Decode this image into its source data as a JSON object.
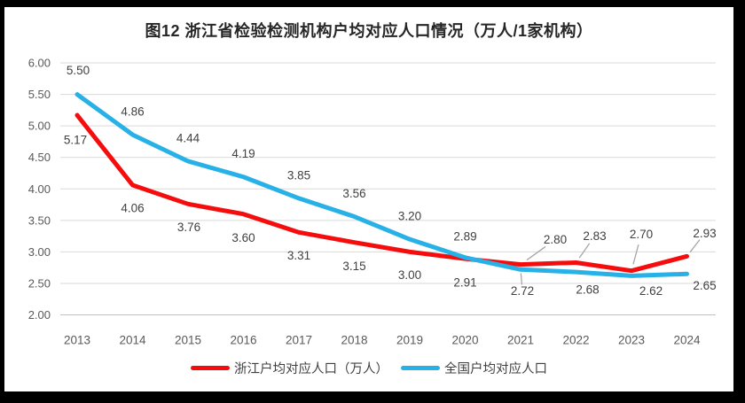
{
  "title": "图12 浙江省检验检测机构户均对应人口情况（万人/1家机构）",
  "colors": {
    "background_frame": "#000000",
    "canvas": "#ffffff",
    "gridline": "#d9d9d9",
    "axis_line": "#c0c0c0",
    "tick_label": "#595959",
    "data_label": "#404040",
    "leader_line": "#a6a6a6",
    "series_zhejiang": "#f50d0d",
    "series_national": "#27b1e6"
  },
  "chart_data": {
    "type": "line",
    "title": "图12 浙江省检验检测机构户均对应人口情况（万人/1家机构）",
    "x": [
      "2013",
      "2014",
      "2015",
      "2016",
      "2017",
      "2018",
      "2019",
      "2020",
      "2021",
      "2022",
      "2023",
      "2024"
    ],
    "series": [
      {
        "name": "浙江户均对应人口（万人）",
        "color": "#f50d0d",
        "values": [
          5.17,
          4.06,
          3.76,
          3.6,
          3.31,
          3.15,
          3.0,
          2.89,
          2.8,
          2.83,
          2.7,
          2.93
        ],
        "label_offsets": [
          [
            -2,
            28
          ],
          [
            0,
            26
          ],
          [
            1,
            26
          ],
          [
            0,
            27
          ],
          [
            0,
            26
          ],
          [
            0,
            27
          ],
          [
            0,
            26
          ],
          [
            0,
            -25
          ],
          [
            39,
            -28
          ],
          [
            21,
            -30
          ],
          [
            11,
            -41
          ],
          [
            20,
            -26
          ]
        ],
        "leaders": [
          false,
          false,
          false,
          false,
          false,
          false,
          false,
          false,
          true,
          true,
          true,
          true
        ]
      },
      {
        "name": "全国户均对应人口",
        "color": "#27b1e6",
        "values": [
          5.5,
          4.86,
          4.44,
          4.19,
          3.85,
          3.56,
          3.2,
          2.91,
          2.72,
          2.68,
          2.62,
          2.65
        ],
        "label_offsets": [
          [
            1,
            -27
          ],
          [
            0,
            -26
          ],
          [
            0,
            -26
          ],
          [
            0,
            -26
          ],
          [
            0,
            -26
          ],
          [
            0,
            -26
          ],
          [
            0,
            -26
          ],
          [
            0,
            28
          ],
          [
            2,
            24
          ],
          [
            13,
            20
          ],
          [
            22,
            17
          ],
          [
            20,
            13
          ]
        ],
        "leaders": [
          false,
          false,
          false,
          false,
          false,
          false,
          false,
          false,
          true,
          false,
          false,
          false
        ]
      }
    ],
    "ylim": [
      2.0,
      6.0
    ],
    "yticks": [
      "6.00",
      "5.50",
      "5.00",
      "4.50",
      "4.00",
      "3.50",
      "3.00",
      "2.50",
      "2.00"
    ],
    "value_label_format": "0.00",
    "grid": true,
    "legend_position": "bottom"
  },
  "legend": {
    "items": [
      {
        "label": "浙江户均对应人口（万人）"
      },
      {
        "label": "全国户均对应人口"
      }
    ]
  }
}
